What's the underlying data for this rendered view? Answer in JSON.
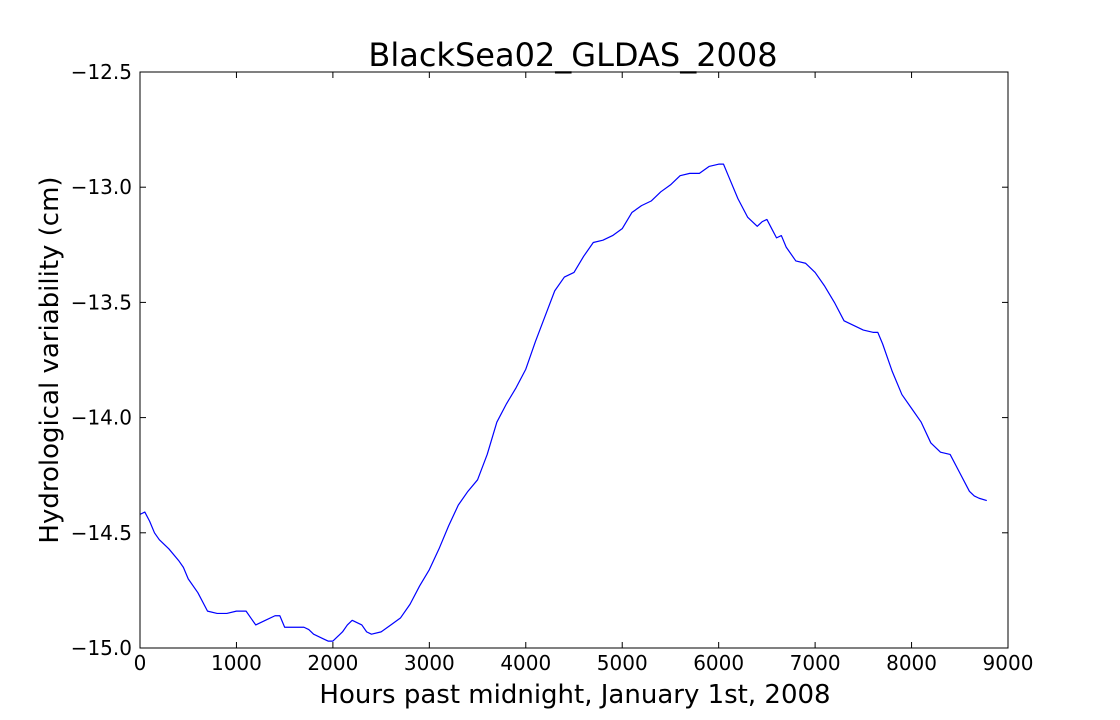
{
  "chart_data": {
    "type": "line",
    "title": "BlackSea02_GLDAS_2008",
    "xlabel": "Hours past midnight, January 1st, 2008",
    "ylabel": "Hydrological variability (cm)",
    "xlim": [
      0,
      9000
    ],
    "ylim": [
      -15.0,
      -12.5
    ],
    "xticks": [
      "0",
      "1000",
      "2000",
      "3000",
      "4000",
      "5000",
      "6000",
      "7000",
      "8000",
      "9000"
    ],
    "yticks": [
      "−12.5",
      "−13.0",
      "−13.5",
      "−14.0",
      "−14.5",
      "−15.0"
    ],
    "grid": false,
    "line_color": "#0000ff",
    "series": [
      {
        "x": [
          0,
          50,
          100,
          150,
          200,
          300,
          400,
          450,
          500,
          600,
          700,
          800,
          900,
          1000,
          1100,
          1150,
          1200,
          1300,
          1400,
          1450,
          1500,
          1600,
          1700,
          1750,
          1800,
          1900,
          1950,
          2000,
          2050,
          2100,
          2150,
          2200,
          2300,
          2350,
          2400,
          2500,
          2600,
          2700,
          2800,
          2900,
          3000,
          3100,
          3200,
          3300,
          3400,
          3500,
          3600,
          3700,
          3800,
          3900,
          4000,
          4100,
          4200,
          4300,
          4400,
          4500,
          4600,
          4700,
          4800,
          4900,
          5000,
          5100,
          5200,
          5300,
          5400,
          5500,
          5600,
          5700,
          5800,
          5900,
          6000,
          6050,
          6100,
          6200,
          6300,
          6400,
          6450,
          6500,
          6550,
          6600,
          6650,
          6700,
          6800,
          6900,
          7000,
          7100,
          7200,
          7300,
          7400,
          7500,
          7600,
          7650,
          7700,
          7800,
          7900,
          8000,
          8100,
          8200,
          8300,
          8400,
          8500,
          8600,
          8650,
          8700,
          8780
        ],
        "y": [
          -14.42,
          -14.41,
          -14.45,
          -14.5,
          -14.53,
          -14.57,
          -14.62,
          -14.65,
          -14.7,
          -14.76,
          -14.84,
          -14.85,
          -14.85,
          -14.84,
          -14.84,
          -14.87,
          -14.9,
          -14.88,
          -14.86,
          -14.86,
          -14.91,
          -14.91,
          -14.91,
          -14.92,
          -14.94,
          -14.96,
          -14.97,
          -14.97,
          -14.95,
          -14.93,
          -14.9,
          -14.88,
          -14.9,
          -14.93,
          -14.94,
          -14.93,
          -14.9,
          -14.87,
          -14.81,
          -14.73,
          -14.66,
          -14.57,
          -14.47,
          -14.38,
          -14.32,
          -14.27,
          -14.16,
          -14.02,
          -13.94,
          -13.87,
          -13.79,
          -13.67,
          -13.56,
          -13.45,
          -13.39,
          -13.37,
          -13.3,
          -13.24,
          -13.23,
          -13.21,
          -13.18,
          -13.11,
          -13.08,
          -13.06,
          -13.02,
          -12.99,
          -12.95,
          -12.94,
          -12.94,
          -12.91,
          -12.9,
          -12.9,
          -12.95,
          -13.05,
          -13.13,
          -13.17,
          -13.15,
          -13.14,
          -13.18,
          -13.22,
          -13.21,
          -13.26,
          -13.32,
          -13.33,
          -13.37,
          -13.43,
          -13.5,
          -13.58,
          -13.6,
          -13.62,
          -13.63,
          -13.63,
          -13.68,
          -13.8,
          -13.9,
          -13.96,
          -14.02,
          -14.11,
          -14.15,
          -14.16,
          -14.24,
          -14.32,
          -14.34,
          -14.35,
          -14.36
        ]
      }
    ]
  }
}
